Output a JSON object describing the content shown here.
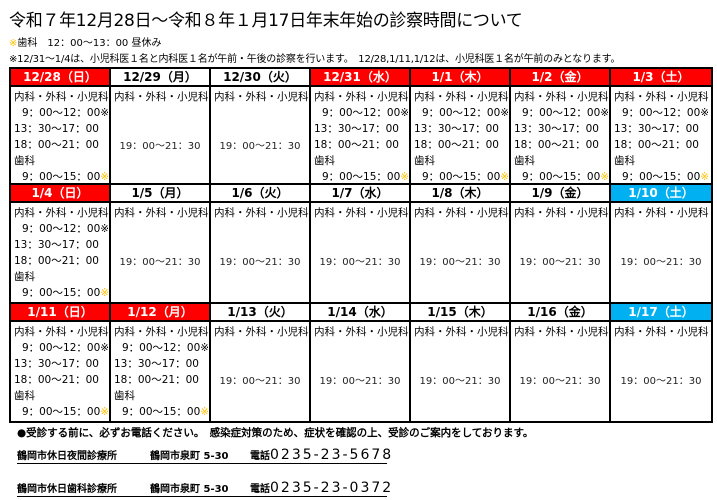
{
  "title": "令和７年12月28日～令和８年１月17日年末年始の診察時間について",
  "notes": {
    "dental_lunch_mark": "※",
    "dental_lunch": "歯科　12：00～13：00 昼休み",
    "staff": "※12/31～1/4は、小児科医１名と内科医１名が午前・午後の診察を行います。　12/28,1/11,1/12は、小児科医１名が午前のみとなります。"
  },
  "colors": {
    "holiday": "#ff0000",
    "saturday": "#00b0f0",
    "dental_mark": "#ffc000"
  },
  "labels": {
    "depts": "内科・外科・小児科",
    "morning": "9：00～12：00※",
    "afternoon": "13：30～17：00",
    "night": "18：00～21：00",
    "dental": "歯科",
    "dental_hours": "9：00～15：00",
    "dental_mark": "※",
    "evening": "19：00～21：30"
  },
  "days": [
    {
      "date": "12/28（日）",
      "type": "holiday",
      "schedule": "full"
    },
    {
      "date": "12/29（月）",
      "type": "weekday",
      "schedule": "evening"
    },
    {
      "date": "12/30（火）",
      "type": "weekday",
      "schedule": "evening"
    },
    {
      "date": "12/31（水）",
      "type": "holiday",
      "schedule": "full"
    },
    {
      "date": "1/1（木）",
      "type": "holiday",
      "schedule": "full"
    },
    {
      "date": "1/2（金）",
      "type": "holiday",
      "schedule": "full"
    },
    {
      "date": "1/3（土）",
      "type": "holiday",
      "schedule": "full"
    },
    {
      "date": "1/4（日）",
      "type": "holiday",
      "schedule": "full"
    },
    {
      "date": "1/5（月）",
      "type": "weekday",
      "schedule": "evening"
    },
    {
      "date": "1/6（火）",
      "type": "weekday",
      "schedule": "evening"
    },
    {
      "date": "1/7（水）",
      "type": "weekday",
      "schedule": "evening"
    },
    {
      "date": "1/8（木）",
      "type": "weekday",
      "schedule": "evening"
    },
    {
      "date": "1/9（金）",
      "type": "weekday",
      "schedule": "evening"
    },
    {
      "date": "1/10（土）",
      "type": "saturday",
      "schedule": "evening"
    },
    {
      "date": "1/11（日）",
      "type": "holiday",
      "schedule": "full"
    },
    {
      "date": "1/12（月）",
      "type": "holiday",
      "schedule": "full"
    },
    {
      "date": "1/13（火）",
      "type": "weekday",
      "schedule": "evening"
    },
    {
      "date": "1/14（水）",
      "type": "weekday",
      "schedule": "evening"
    },
    {
      "date": "1/15（木）",
      "type": "weekday",
      "schedule": "evening"
    },
    {
      "date": "1/16（金）",
      "type": "weekday",
      "schedule": "evening"
    },
    {
      "date": "1/17（土）",
      "type": "saturday",
      "schedule": "evening"
    }
  ],
  "footer": {
    "notice": "●受診する前に、必ずお電話ください。　感染症対策のため、症状を確認の上、受診のご案内をしております。",
    "clinics": [
      {
        "name": "鶴岡市休日夜間診療所",
        "address": "鶴岡市泉町 5-30",
        "tel_label": "電話",
        "tel": "0235-23-5678"
      },
      {
        "name": "鶴岡市休日歯科診療所",
        "address": "鶴岡市泉町 5-30",
        "tel_label": "電話",
        "tel": "0235-23-0372"
      }
    ]
  }
}
